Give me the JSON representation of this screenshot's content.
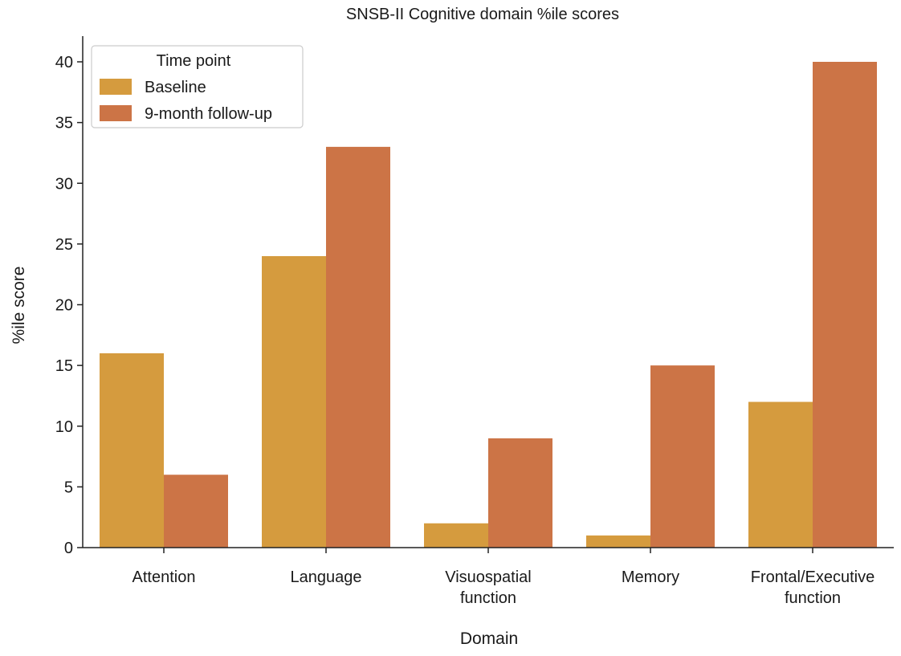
{
  "chart_data": {
    "type": "bar",
    "title": "SNSB-II Cognitive domain %ile scores",
    "xlabel": "Domain",
    "ylabel": "%ile score",
    "ylim": [
      0,
      42
    ],
    "yticks": [
      0,
      5,
      10,
      15,
      20,
      25,
      30,
      35,
      40
    ],
    "categories": [
      [
        "Attention"
      ],
      [
        "Language"
      ],
      [
        "Visuospatial",
        "function"
      ],
      [
        "Memory"
      ],
      [
        "Frontal/Executive",
        "function"
      ]
    ],
    "legend": {
      "title": "Time point",
      "position": "top-left"
    },
    "series": [
      {
        "name": "Baseline",
        "color": "#D59B3E",
        "values": [
          16,
          24,
          2,
          1,
          12
        ]
      },
      {
        "name": "9-month follow-up",
        "color": "#CC7446",
        "values": [
          6,
          33,
          9,
          15,
          40
        ]
      }
    ],
    "grid": false
  }
}
